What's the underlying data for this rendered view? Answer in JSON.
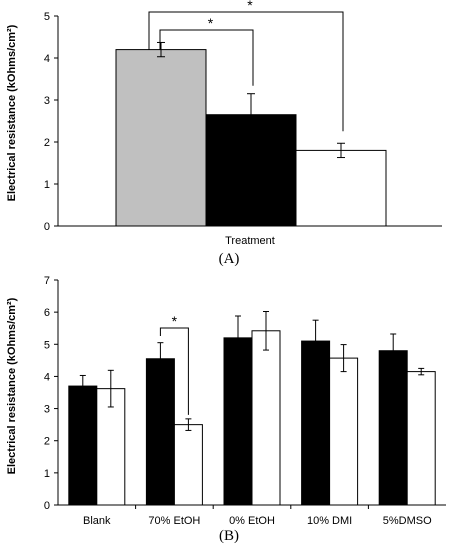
{
  "colors": {
    "grey": "#c0c0c0",
    "black": "#000000",
    "white": "#ffffff",
    "axis": "#000000"
  },
  "chart_data": [
    {
      "type": "bar",
      "panel_label": "(A)",
      "xlabel": "Treatment",
      "ylabel": "Electrical resistance (kOhms/cm²)",
      "ylim": [
        0,
        5
      ],
      "yticks": [
        "0",
        "1",
        "2",
        "3",
        "4",
        "5"
      ],
      "bars": [
        {
          "value": 4.2,
          "error": 0.17,
          "fill": "#c0c0c0"
        },
        {
          "value": 2.65,
          "error": 0.5,
          "fill": "#000000"
        },
        {
          "value": 1.8,
          "error": 0.17,
          "fill": "#ffffff"
        }
      ],
      "significance": [
        {
          "from": 0,
          "to": 2,
          "label": "*"
        },
        {
          "from": 0,
          "to": 1,
          "label": "*"
        }
      ],
      "grid": false
    },
    {
      "type": "bar",
      "panel_label": "(B)",
      "ylabel": "Electrical resistance (kOhms/cm²)",
      "ylim": [
        0,
        7
      ],
      "yticks": [
        "0",
        "1",
        "2",
        "3",
        "4",
        "5",
        "6",
        "7"
      ],
      "categories": [
        "Blank",
        "70% EtOH",
        "0% EtOH",
        "10% DMI",
        "5%DMSO"
      ],
      "series": [
        {
          "fill": "#000000",
          "values": [
            3.7,
            4.55,
            5.2,
            5.1,
            4.8
          ],
          "errors": [
            0.33,
            0.5,
            0.68,
            0.65,
            0.52
          ]
        },
        {
          "fill": "#ffffff",
          "values": [
            3.62,
            2.5,
            5.42,
            4.57,
            4.15
          ],
          "errors": [
            0.57,
            0.18,
            0.6,
            0.42,
            0.1
          ]
        }
      ],
      "significance": [
        {
          "category": 1,
          "label": "*"
        }
      ],
      "grid": false
    }
  ]
}
